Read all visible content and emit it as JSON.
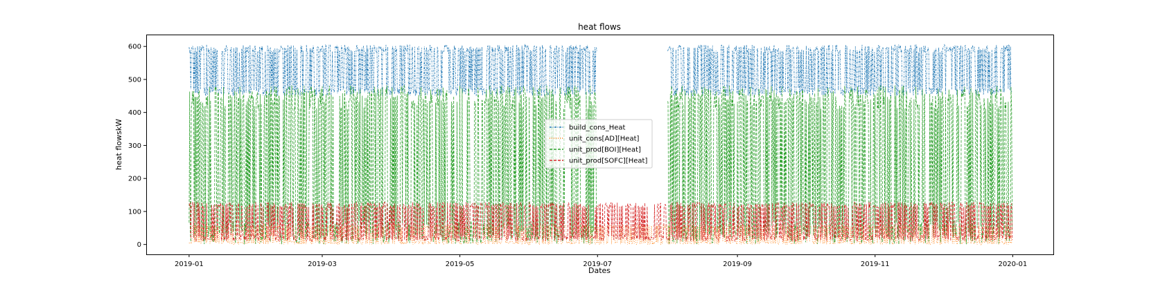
{
  "chart_data": {
    "type": "line",
    "title": "heat flows",
    "xlabel": "Dates",
    "ylabel": "heat flowskW",
    "xlim": [
      "2018-12-13",
      "2020-01-19"
    ],
    "ylim": [
      -30,
      636
    ],
    "x_ticks": [
      "2019-01",
      "2019-03",
      "2019-05",
      "2019-07",
      "2019-09",
      "2019-11",
      "2020-01"
    ],
    "y_ticks": [
      0,
      100,
      200,
      300,
      400,
      500,
      600
    ],
    "grid": false,
    "legend_position": "center",
    "x_range": [
      "2019-01-01",
      "2019-12-31"
    ],
    "series": [
      {
        "name": "build_cons_Heat",
        "color": "#1f77b4",
        "linestyle": "dashdot",
        "typical_range": [
          450,
          605
        ],
        "active_months": [
          1,
          2,
          3,
          4,
          5,
          6,
          8,
          9,
          10,
          11,
          12
        ]
      },
      {
        "name": "unit_cons[AD][Heat]",
        "color": "#ff7f0e",
        "linestyle": "dotted",
        "typical_range": [
          0,
          60
        ],
        "active_months": [
          1,
          2,
          3,
          4,
          5,
          6,
          7,
          8,
          9,
          10,
          11,
          12
        ]
      },
      {
        "name": "unit_prod[BOI][Heat]",
        "color": "#2ca02c",
        "linestyle": "dashed",
        "typical_range": [
          0,
          482
        ],
        "active_months": [
          1,
          2,
          3,
          4,
          5,
          6,
          8,
          9,
          10,
          11,
          12
        ]
      },
      {
        "name": "unit_prod[SOFC][Heat]",
        "color": "#d62728",
        "linestyle": "dashed",
        "typical_range": [
          10,
          128
        ],
        "active_months": [
          1,
          2,
          3,
          4,
          5,
          6,
          7,
          8,
          9,
          10,
          11,
          12
        ]
      }
    ]
  }
}
